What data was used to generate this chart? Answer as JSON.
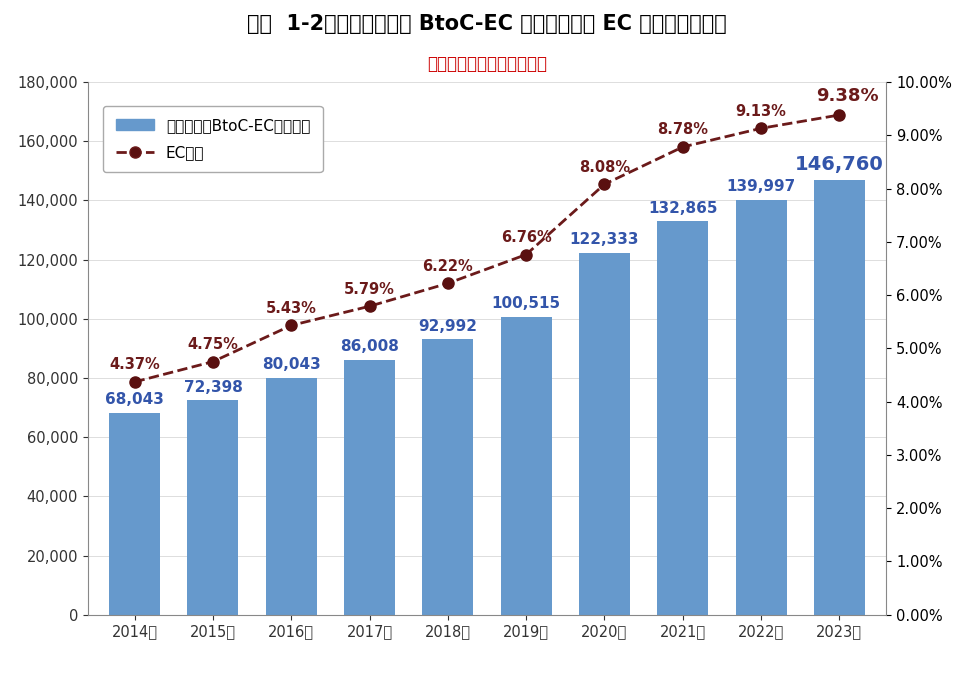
{
  "title": "図表  1-2：物販系分野の BtoC-EC 市場規模及び EC 化率の経年推移",
  "subtitle": "（市場規模の単位：億円）",
  "years": [
    "2014年",
    "2015年",
    "2016年",
    "2017年",
    "2018年",
    "2019年",
    "2020年",
    "2021年",
    "2022年",
    "2023年"
  ],
  "market_values": [
    68043,
    72398,
    80043,
    86008,
    92992,
    100515,
    122333,
    132865,
    139997,
    146760
  ],
  "ec_rates": [
    4.37,
    4.75,
    5.43,
    5.79,
    6.22,
    6.76,
    8.08,
    8.78,
    9.13,
    9.38
  ],
  "ec_rate_labels": [
    "4.37%",
    "4.75%",
    "5.43%",
    "5.79%",
    "6.22%",
    "6.76%",
    "8.08%",
    "8.78%",
    "9.13%",
    "9.38%"
  ],
  "bar_color": "#6699CC",
  "line_color": "#6B1A1A",
  "marker_color": "#5A1010",
  "bar_label_color": "#3355AA",
  "ylim_left": [
    0,
    180000
  ],
  "ylim_right": [
    0.0,
    10.0
  ],
  "yticks_left": [
    0,
    20000,
    40000,
    60000,
    80000,
    100000,
    120000,
    140000,
    160000,
    180000
  ],
  "ytick_labels_left": [
    "0",
    "20,000",
    "40,000",
    "60,000",
    "80,000",
    "100,000",
    "120,000",
    "140,000",
    "160,000",
    "180,000"
  ],
  "yticks_right": [
    0.0,
    1.0,
    2.0,
    3.0,
    4.0,
    5.0,
    6.0,
    7.0,
    8.0,
    9.0,
    10.0
  ],
  "ytick_labels_right": [
    "0.00%",
    "1.00%",
    "2.00%",
    "3.00%",
    "4.00%",
    "5.00%",
    "6.00%",
    "7.00%",
    "8.00%",
    "9.00%",
    "10.00%"
  ],
  "legend_bar_label": "物販系分野BtoC-EC市場規模",
  "legend_line_label": "EC化率",
  "title_fontsize": 15,
  "subtitle_fontsize": 12,
  "tick_fontsize": 10.5,
  "bar_label_fontsize": 11,
  "ec_label_fontsize": 10.5,
  "legend_fontsize": 11,
  "background_color": "#FFFFFF"
}
